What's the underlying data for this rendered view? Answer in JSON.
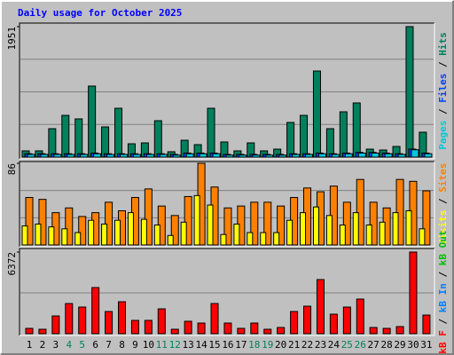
{
  "chart_data": [
    {
      "type": "bar",
      "title": "Daily usage for October 2025",
      "categories": [
        "1",
        "2",
        "3",
        "4",
        "5",
        "6",
        "7",
        "8",
        "9",
        "10",
        "11",
        "12",
        "13",
        "14",
        "15",
        "16",
        "17",
        "18",
        "19",
        "20",
        "21",
        "22",
        "23",
        "24",
        "25",
        "26",
        "27",
        "28",
        "29",
        "30",
        "31"
      ],
      "category_colors": [
        "#000000",
        "#000000",
        "#000000",
        "#00805c",
        "#00805c",
        "#000000",
        "#000000",
        "#000000",
        "#000000",
        "#000000",
        "#00805c",
        "#00805c",
        "#000000",
        "#000000",
        "#000000",
        "#000000",
        "#000000",
        "#00805c",
        "#00805c",
        "#000000",
        "#000000",
        "#000000",
        "#000000",
        "#000000",
        "#00805c",
        "#00805c",
        "#000000",
        "#000000",
        "#000000",
        "#000000",
        "#000000"
      ],
      "ylim": [
        0,
        1951
      ],
      "yticks": [
        1951
      ],
      "series": [
        {
          "name": "Hits",
          "color": "#00805c",
          "values": [
            93,
            93,
            425,
            624,
            571,
            1062,
            451,
            730,
            199,
            212,
            544,
            80,
            252,
            186,
            730,
            226,
            93,
            212,
            93,
            119,
            518,
            624,
            1287,
            425,
            677,
            810,
            119,
            106,
            159,
            1951,
            372
          ]
        },
        {
          "name": "Files",
          "color": "#0040ff",
          "values": [
            50,
            50,
            50,
            50,
            50,
            60,
            50,
            50,
            50,
            50,
            50,
            40,
            60,
            60,
            60,
            40,
            40,
            40,
            40,
            40,
            50,
            50,
            60,
            50,
            60,
            70,
            70,
            60,
            50,
            120,
            60
          ]
        },
        {
          "name": "Pages",
          "color": "#00c8e0",
          "values": [
            40,
            40,
            40,
            40,
            40,
            50,
            40,
            40,
            40,
            40,
            40,
            30,
            50,
            50,
            50,
            30,
            30,
            30,
            30,
            30,
            40,
            40,
            50,
            40,
            50,
            60,
            60,
            50,
            40,
            110,
            50
          ]
        }
      ]
    },
    {
      "type": "bar",
      "categories": [
        "1",
        "2",
        "3",
        "4",
        "5",
        "6",
        "7",
        "8",
        "9",
        "10",
        "11",
        "12",
        "13",
        "14",
        "15",
        "16",
        "17",
        "18",
        "19",
        "20",
        "21",
        "22",
        "23",
        "24",
        "25",
        "26",
        "27",
        "28",
        "29",
        "30",
        "31"
      ],
      "ylim": [
        0,
        86
      ],
      "yticks": [
        86
      ],
      "series": [
        {
          "name": "Sites",
          "color": "#ff8000",
          "values": [
            50,
            48,
            34,
            39,
            30,
            34,
            45,
            36,
            50,
            59,
            41,
            31,
            51,
            86,
            61,
            39,
            41,
            45,
            45,
            41,
            50,
            60,
            56,
            62,
            45,
            69,
            45,
            39,
            69,
            67,
            57
          ]
        },
        {
          "name": "Visits",
          "color": "#ffff00",
          "values": [
            20,
            22,
            19,
            17,
            13,
            26,
            22,
            26,
            34,
            27,
            21,
            10,
            24,
            52,
            42,
            11,
            22,
            13,
            13,
            13,
            26,
            34,
            40,
            31,
            21,
            34,
            21,
            24,
            34,
            36,
            17
          ]
        }
      ]
    },
    {
      "type": "bar",
      "categories": [
        "1",
        "2",
        "3",
        "4",
        "5",
        "6",
        "7",
        "8",
        "9",
        "10",
        "11",
        "12",
        "13",
        "14",
        "15",
        "16",
        "17",
        "18",
        "19",
        "20",
        "21",
        "22",
        "23",
        "24",
        "25",
        "26",
        "27",
        "28",
        "29",
        "30",
        "31"
      ],
      "ylim": [
        0,
        6372
      ],
      "yticks": [
        6372
      ],
      "series": [
        {
          "name": "kB F",
          "color": "#ff0000",
          "values": [
            416,
            346,
            1385,
            2355,
            2078,
            3602,
            1732,
            2493,
            1039,
            1039,
            1939,
            346,
            970,
            831,
            2355,
            831,
            416,
            831,
            346,
            485,
            1732,
            2147,
            4225,
            1524,
            2078,
            2701,
            485,
            416,
            554,
            6372,
            1454
          ]
        }
      ],
      "extra_legend": [
        {
          "name": "kB In",
          "color": "#0080ff"
        },
        {
          "name": "kB Out",
          "color": "#00c000"
        }
      ]
    }
  ]
}
